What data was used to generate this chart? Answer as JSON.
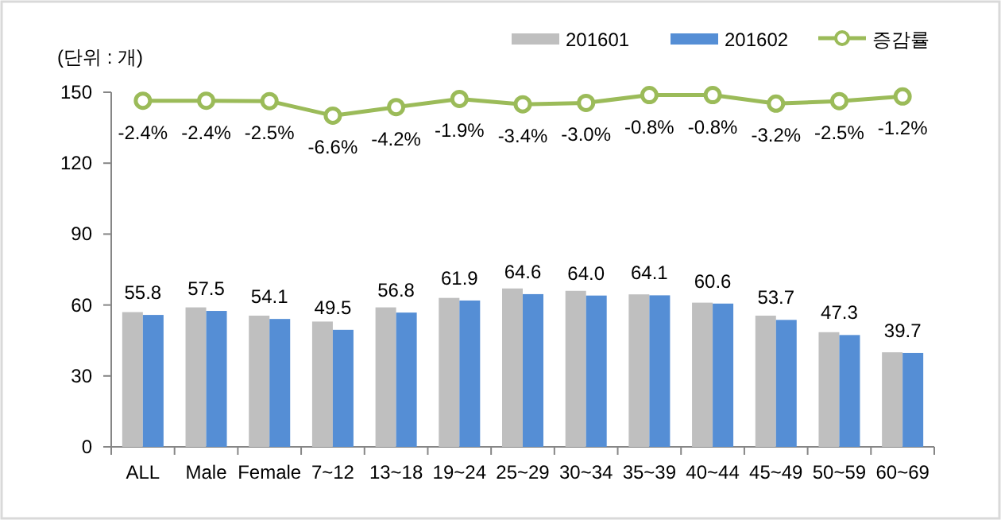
{
  "chart_data": {
    "type": "bar",
    "ylabel": "(단위 : 개)",
    "categories": [
      "ALL",
      "Male",
      "Female",
      "7~12",
      "13~18",
      "19~24",
      "25~29",
      "30~34",
      "35~39",
      "40~44",
      "45~49",
      "50~59",
      "60~69"
    ],
    "series": [
      {
        "name": "201601",
        "color": "#bfbfbf",
        "values": [
          57,
          59,
          55.5,
          53,
          59,
          63,
          67,
          66,
          64.5,
          61,
          55.5,
          48.5,
          40
        ]
      },
      {
        "name": "201602",
        "color": "#558ed5",
        "values": [
          55.8,
          57.5,
          54.1,
          49.5,
          56.8,
          61.9,
          64.6,
          64.0,
          64.1,
          60.6,
          53.7,
          47.3,
          39.7
        ],
        "value_labels": [
          "55.8",
          "57.5",
          "54.1",
          "49.5",
          "56.8",
          "61.9",
          "64.6",
          "64.0",
          "64.1",
          "60.6",
          "53.7",
          "47.3",
          "39.7"
        ]
      },
      {
        "name": "증감률",
        "type": "line",
        "axis": "y2",
        "color": "#9bbb59",
        "marker": "circle",
        "values": [
          -2.4,
          -2.4,
          -2.5,
          -6.6,
          -4.2,
          -1.9,
          -3.4,
          -3.0,
          -0.8,
          -0.8,
          -3.2,
          -2.5,
          -1.2
        ],
        "value_labels": [
          "-2.4%",
          "-2.4%",
          "-2.5%",
          "-6.6%",
          "-4.2%",
          "-1.9%",
          "-3.4%",
          "-3.0%",
          "-0.8%",
          "-0.8%",
          "-3.2%",
          "-2.5%",
          "-1.2%"
        ]
      }
    ],
    "ylim": [
      0,
      150
    ],
    "yticks": [
      0,
      30,
      60,
      90,
      120,
      150
    ],
    "y2lim": [
      -100,
      0
    ],
    "grid": false,
    "legend": "top right"
  }
}
